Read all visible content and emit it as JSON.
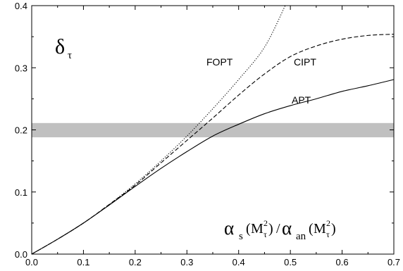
{
  "chart_data": {
    "type": "line",
    "title": "",
    "xlabel": "",
    "ylabel": "",
    "xlim": [
      0.0,
      0.7
    ],
    "ylim": [
      0.0,
      0.4
    ],
    "x_ticks": [
      "0.0",
      "0.1",
      "0.2",
      "0.3",
      "0.4",
      "0.5",
      "0.6",
      "0.7"
    ],
    "y_ticks": [
      "0.0",
      "0.1",
      "0.2",
      "0.3",
      "0.4"
    ],
    "grid": false,
    "legend": "none",
    "band": {
      "y_low": 0.188,
      "y_high": 0.211,
      "color": "#c0c0c0"
    },
    "annotations": {
      "delta": "δ",
      "delta_sub": "τ",
      "alpha": "α",
      "s": "s",
      "M": "M",
      "tau": "τ",
      "two": "2",
      "an": "an",
      "lparen": "(",
      "rparen": ")",
      "slash": "/"
    },
    "series": [
      {
        "name": "APT",
        "style": "solid",
        "x": [
          0.0,
          0.05,
          0.1,
          0.15,
          0.2,
          0.25,
          0.3,
          0.35,
          0.4,
          0.45,
          0.5,
          0.55,
          0.6,
          0.65,
          0.7
        ],
        "y": [
          0.0,
          0.024,
          0.05,
          0.079,
          0.109,
          0.138,
          0.165,
          0.19,
          0.209,
          0.226,
          0.239,
          0.25,
          0.262,
          0.271,
          0.281
        ]
      },
      {
        "name": "CIPT",
        "style": "dashed",
        "x": [
          0.0,
          0.05,
          0.1,
          0.15,
          0.2,
          0.25,
          0.3,
          0.35,
          0.4,
          0.45,
          0.5,
          0.55,
          0.6,
          0.65,
          0.7
        ],
        "y": [
          0.0,
          0.024,
          0.05,
          0.08,
          0.111,
          0.147,
          0.183,
          0.219,
          0.256,
          0.29,
          0.318,
          0.335,
          0.346,
          0.352,
          0.354
        ]
      },
      {
        "name": "FOPT",
        "style": "dotted",
        "x": [
          0.0,
          0.05,
          0.1,
          0.15,
          0.2,
          0.25,
          0.3,
          0.35,
          0.4,
          0.45,
          0.49
        ],
        "y": [
          0.0,
          0.024,
          0.05,
          0.08,
          0.113,
          0.15,
          0.19,
          0.234,
          0.281,
          0.333,
          0.4
        ]
      }
    ]
  }
}
